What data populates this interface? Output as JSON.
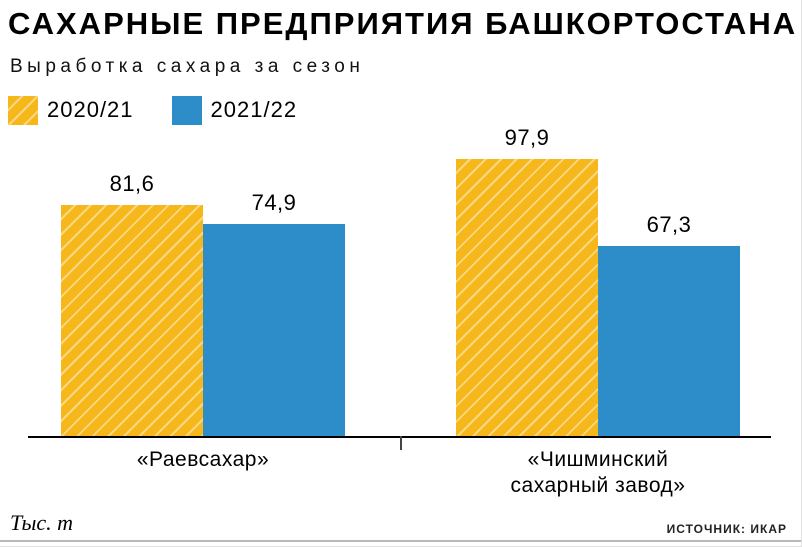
{
  "header": {
    "title": "САХАРНЫЕ ПРЕДПРИЯТИЯ БАШКОРТОСТАНА",
    "subtitle": "Выработка сахара за сезон"
  },
  "footer": {
    "unit_label": "Тыс. т",
    "source_label": "ИСТОЧНИК: ИКАР"
  },
  "colors": {
    "gold": "#F6B71B",
    "blue": "#2D8DC8",
    "text": "#000000",
    "axis": "#000000"
  },
  "chart_data": {
    "type": "bar",
    "title": "САХАРНЫЕ ПРЕДПРИЯТИЯ БАШКОРТОСТАНА",
    "subtitle": "Выработка сахара за сезон",
    "unit": "Тыс. т",
    "source": "ИСТОЧНИК: ИКАР",
    "categories": [
      "«Раевсахар»",
      "«Чишминский сахарный завод»"
    ],
    "series": [
      {
        "name": "2020/21",
        "color": "#F6B71B",
        "hatch": true,
        "values": [
          81.6,
          97.9
        ],
        "values_display": [
          "81,6",
          "97,9"
        ]
      },
      {
        "name": "2021/22",
        "color": "#2D8DC8",
        "hatch": false,
        "values": [
          74.9,
          67.3
        ],
        "values_display": [
          "74,9",
          "67,3"
        ]
      }
    ],
    "ylim": [
      0,
      110
    ],
    "grid": false,
    "legend_position": "top-left",
    "value_labels_shown": true
  }
}
